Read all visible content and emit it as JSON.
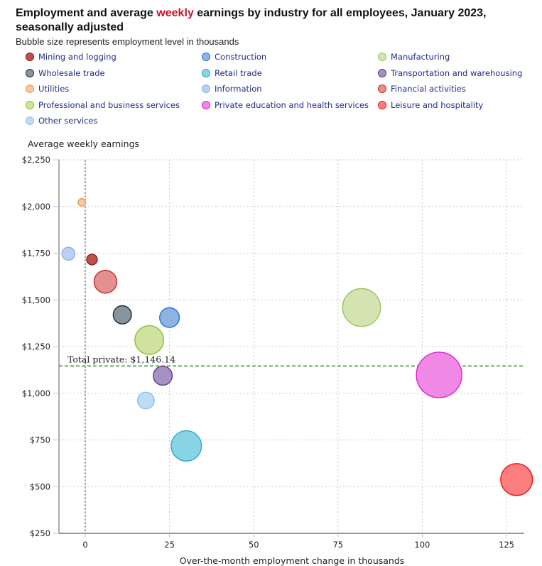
{
  "chart_data": {
    "type": "scatter",
    "subtype": "bubble",
    "title_parts": [
      "Employment and average ",
      "weekly",
      " earnings by industry for all employees, January 2023, seasonally adjusted"
    ],
    "subtitle": "Bubble size represents employment level in thousands",
    "xlabel": "Over-the-month employment change in thousands",
    "ylabel": "Average weekly earnings",
    "xlim": [
      -8,
      134
    ],
    "ylim": [
      250,
      2250
    ],
    "x_ticks": [
      0,
      25,
      50,
      75,
      100,
      125
    ],
    "x_tick_labels": [
      "0",
      "25",
      "50",
      "75",
      "100",
      "125"
    ],
    "y_ticks": [
      250,
      500,
      750,
      1000,
      1250,
      1500,
      1750,
      2000,
      2250
    ],
    "y_tick_labels": [
      "$250",
      "$500",
      "$750",
      "$1,000",
      "$1,250",
      "$1,500",
      "$1,750",
      "$2,000",
      "$2,250"
    ],
    "grid": true,
    "legend_position": "top",
    "reference_line": {
      "label": "Total private: $1,146.14",
      "value": 1146.14,
      "color": "#1a8a1a"
    },
    "series": [
      {
        "name": "Mining and logging",
        "x": 2,
        "y": 1716,
        "size_rel": 0.14,
        "fill": "#c0504d",
        "stroke": "#8b1a1a"
      },
      {
        "name": "Construction",
        "x": 25,
        "y": 1405,
        "size_rel": 0.26,
        "fill": "#8db3e2",
        "stroke": "#2f6fd1"
      },
      {
        "name": "Manufacturing",
        "x": 82,
        "y": 1459,
        "size_rel": 0.5,
        "fill": "#d3e4b2",
        "stroke": "#9bc45a"
      },
      {
        "name": "Wholesale trade",
        "x": 11,
        "y": 1420,
        "size_rel": 0.24,
        "fill": "#8a949e",
        "stroke": "#1f2a36"
      },
      {
        "name": "Retail trade",
        "x": 30,
        "y": 718,
        "size_rel": 0.4,
        "fill": "#89d4e4",
        "stroke": "#29a8c8"
      },
      {
        "name": "Transportation and warehousing",
        "x": 23,
        "y": 1094,
        "size_rel": 0.25,
        "fill": "#a691c2",
        "stroke": "#5b3d8a"
      },
      {
        "name": "Utilities",
        "x": -1,
        "y": 2022,
        "size_rel": 0.1,
        "fill": "#f6c7a2",
        "stroke": "#ef9a55"
      },
      {
        "name": "Information",
        "x": -5,
        "y": 1747,
        "size_rel": 0.17,
        "fill": "#bcd0f4",
        "stroke": "#8aaeea"
      },
      {
        "name": "Financial activities",
        "x": 6,
        "y": 1597,
        "size_rel": 0.3,
        "fill": "#e39090",
        "stroke": "#cc2a2a"
      },
      {
        "name": "Professional and business services",
        "x": 19,
        "y": 1285,
        "size_rel": 0.38,
        "fill": "#cfe2a0",
        "stroke": "#8fbf30"
      },
      {
        "name": "Private education and health services",
        "x": 105,
        "y": 1098,
        "size_rel": 0.6,
        "fill": "#f088e6",
        "stroke": "#e020d0"
      },
      {
        "name": "Leisure and hospitality",
        "x": 128,
        "y": 538,
        "size_rel": 0.42,
        "fill": "#fd7e7e",
        "stroke": "#f01818"
      },
      {
        "name": "Other services",
        "x": 18,
        "y": 961,
        "size_rel": 0.22,
        "fill": "#bfdcf5",
        "stroke": "#8cc0ec"
      }
    ]
  }
}
